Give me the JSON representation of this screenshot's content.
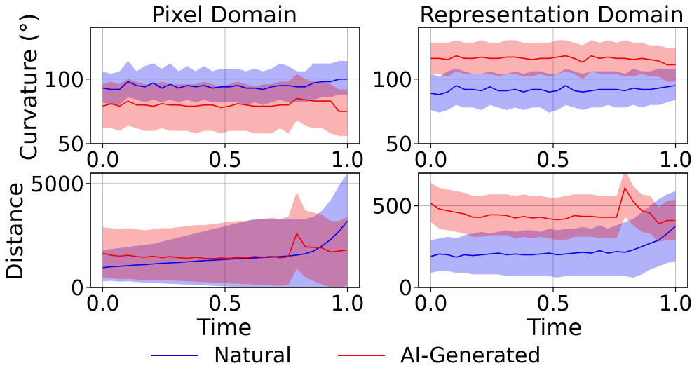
{
  "chart_data": [
    {
      "type": "line",
      "title": "Pixel Domain",
      "xlabel": "",
      "ylabel": "Curvature (°)",
      "xlim": [
        -0.05,
        1.05
      ],
      "ylim": [
        50,
        140
      ],
      "xticks": [
        0.0,
        0.5,
        1.0
      ],
      "xtick_labels": [
        "0.0",
        "0.5",
        "1.0"
      ],
      "yticks": [
        50,
        100
      ],
      "ytick_labels": [
        "50",
        "100"
      ],
      "grid": true,
      "x": [
        0.0,
        0.0345,
        0.069,
        0.1034,
        0.1379,
        0.1724,
        0.2069,
        0.2414,
        0.2759,
        0.3103,
        0.3448,
        0.3793,
        0.4138,
        0.4483,
        0.4828,
        0.5172,
        0.5517,
        0.5862,
        0.6207,
        0.6552,
        0.6897,
        0.7241,
        0.7586,
        0.7931,
        0.8276,
        0.8621,
        0.8966,
        0.931,
        0.9655,
        1.0
      ],
      "series": [
        {
          "name": "Natural",
          "color": "#0000ee",
          "values": [
            93,
            92,
            92,
            98,
            95,
            94,
            97,
            93,
            96,
            93,
            95,
            94,
            95,
            93,
            94,
            94,
            95,
            93,
            93,
            92,
            94,
            95,
            95,
            94,
            94,
            97,
            98,
            98,
            100,
            100
          ],
          "upper": [
            106,
            104,
            106,
            114,
            106,
            110,
            112,
            108,
            112,
            106,
            110,
            106,
            110,
            106,
            108,
            108,
            108,
            106,
            108,
            106,
            108,
            112,
            110,
            106,
            106,
            112,
            112,
            112,
            114,
            114
          ],
          "lower": [
            82,
            80,
            80,
            86,
            84,
            82,
            84,
            82,
            84,
            82,
            84,
            82,
            84,
            82,
            82,
            82,
            82,
            80,
            82,
            80,
            82,
            84,
            82,
            82,
            82,
            84,
            86,
            86,
            88,
            88
          ]
        },
        {
          "name": "AI-Generated",
          "color": "#ee0000",
          "values": [
            79,
            81,
            79,
            83,
            80,
            80,
            79,
            81,
            80,
            80,
            79,
            79,
            80,
            80,
            78,
            79,
            81,
            80,
            79,
            79,
            79,
            80,
            80,
            85,
            84,
            83,
            83,
            83,
            75,
            75
          ],
          "upper": [
            96,
            98,
            96,
            100,
            98,
            96,
            96,
            98,
            96,
            96,
            96,
            96,
            98,
            96,
            94,
            96,
            98,
            96,
            94,
            96,
            96,
            98,
            98,
            104,
            100,
            98,
            98,
            96,
            92,
            92
          ],
          "lower": [
            62,
            62,
            60,
            64,
            62,
            60,
            60,
            62,
            60,
            60,
            60,
            58,
            60,
            60,
            58,
            60,
            60,
            60,
            58,
            58,
            58,
            62,
            58,
            68,
            64,
            62,
            62,
            58,
            56,
            56
          ]
        }
      ]
    },
    {
      "type": "line",
      "title": "Representation Domain",
      "xlabel": "",
      "ylabel": "",
      "xlim": [
        -0.05,
        1.05
      ],
      "ylim": [
        50,
        140
      ],
      "xticks": [
        0.0,
        0.5,
        1.0
      ],
      "xtick_labels": [
        "0.0",
        "0.5",
        "1.0"
      ],
      "yticks": [
        50,
        100
      ],
      "ytick_labels": [
        "50",
        "100"
      ],
      "grid": true,
      "x": [
        0.0,
        0.0345,
        0.069,
        0.1034,
        0.1379,
        0.1724,
        0.2069,
        0.2414,
        0.2759,
        0.3103,
        0.3448,
        0.3793,
        0.4138,
        0.4483,
        0.4828,
        0.5172,
        0.5517,
        0.5862,
        0.6207,
        0.6552,
        0.6897,
        0.7241,
        0.7586,
        0.7931,
        0.8276,
        0.8621,
        0.8966,
        0.931,
        0.9655,
        1.0
      ],
      "series": [
        {
          "name": "Natural",
          "color": "#0000ee",
          "values": [
            89,
            88,
            90,
            95,
            92,
            92,
            91,
            94,
            91,
            91,
            92,
            90,
            92,
            92,
            90,
            91,
            95,
            91,
            90,
            91,
            92,
            92,
            92,
            91,
            93,
            92,
            92,
            93,
            94,
            95
          ],
          "upper": [
            104,
            102,
            106,
            108,
            106,
            104,
            104,
            106,
            104,
            104,
            106,
            104,
            106,
            106,
            104,
            104,
            108,
            106,
            104,
            106,
            106,
            106,
            106,
            104,
            108,
            106,
            106,
            108,
            108,
            108
          ],
          "lower": [
            76,
            74,
            76,
            80,
            78,
            78,
            76,
            80,
            78,
            76,
            78,
            76,
            78,
            78,
            74,
            76,
            80,
            78,
            76,
            78,
            78,
            80,
            78,
            78,
            80,
            78,
            80,
            80,
            82,
            84
          ]
        },
        {
          "name": "AI-Generated",
          "color": "#ee0000",
          "values": [
            116,
            116,
            115,
            118,
            116,
            116,
            117,
            116,
            116,
            117,
            117,
            116,
            115,
            116,
            116,
            117,
            118,
            116,
            113,
            118,
            116,
            117,
            116,
            116,
            115,
            116,
            115,
            114,
            111,
            111
          ],
          "upper": [
            128,
            128,
            128,
            130,
            128,
            128,
            130,
            128,
            128,
            130,
            130,
            128,
            128,
            128,
            128,
            130,
            130,
            128,
            126,
            130,
            128,
            130,
            128,
            130,
            128,
            128,
            126,
            126,
            124,
            124
          ],
          "lower": [
            104,
            104,
            102,
            106,
            104,
            104,
            104,
            104,
            102,
            104,
            104,
            102,
            102,
            104,
            102,
            104,
            106,
            104,
            100,
            106,
            104,
            104,
            104,
            102,
            102,
            104,
            102,
            102,
            98,
            98
          ]
        }
      ]
    },
    {
      "type": "line",
      "title": "",
      "xlabel": "Time",
      "ylabel": "Distance",
      "xlim": [
        -0.05,
        1.05
      ],
      "ylim": [
        0,
        5500
      ],
      "xticks": [
        0.0,
        0.5,
        1.0
      ],
      "xtick_labels": [
        "0.0",
        "0.5",
        "1.0"
      ],
      "yticks": [
        0,
        5000
      ],
      "ytick_labels": [
        "0",
        "5000"
      ],
      "grid": true,
      "x": [
        0.0,
        0.0345,
        0.069,
        0.1034,
        0.1379,
        0.1724,
        0.2069,
        0.2414,
        0.2759,
        0.3103,
        0.3448,
        0.3793,
        0.4138,
        0.4483,
        0.4828,
        0.5172,
        0.5517,
        0.5862,
        0.6207,
        0.6552,
        0.6897,
        0.7241,
        0.7586,
        0.7931,
        0.8276,
        0.8621,
        0.8966,
        0.931,
        0.9655,
        1.0
      ],
      "series": [
        {
          "name": "Natural",
          "color": "#0000ee",
          "values": [
            950,
            1000,
            1020,
            1050,
            1080,
            1100,
            1130,
            1160,
            1180,
            1200,
            1230,
            1260,
            1290,
            1310,
            1330,
            1360,
            1380,
            1400,
            1420,
            1440,
            1460,
            1480,
            1510,
            1560,
            1620,
            1750,
            2000,
            2300,
            2700,
            3200
          ],
          "upper": [
            1800,
            1850,
            1900,
            1950,
            2000,
            2050,
            2100,
            2200,
            2300,
            2400,
            2500,
            2600,
            2700,
            2800,
            2900,
            3000,
            3100,
            3200,
            3300,
            3300,
            3300,
            3300,
            3300,
            3300,
            3300,
            3400,
            3700,
            4200,
            4900,
            5500
          ],
          "lower": [
            300,
            320,
            280,
            300,
            260,
            240,
            220,
            200,
            180,
            160,
            140,
            120,
            100,
            80,
            60,
            40,
            20,
            10,
            0,
            0,
            0,
            0,
            0,
            0,
            0,
            0,
            0,
            0,
            0,
            0
          ]
        },
        {
          "name": "AI-Generated",
          "color": "#ee0000",
          "values": [
            1650,
            1550,
            1500,
            1550,
            1480,
            1450,
            1500,
            1430,
            1480,
            1430,
            1400,
            1450,
            1400,
            1380,
            1420,
            1400,
            1450,
            1420,
            1480,
            1450,
            1500,
            1420,
            1480,
            2600,
            1950,
            1930,
            1900,
            1700,
            1750,
            1800
          ],
          "upper": [
            2900,
            2850,
            2800,
            2850,
            2800,
            2750,
            2800,
            2850,
            2850,
            2900,
            2950,
            3000,
            3000,
            3050,
            3100,
            3150,
            3200,
            3200,
            3250,
            3300,
            3350,
            3300,
            3400,
            4600,
            3700,
            3600,
            3500,
            3200,
            3200,
            3400
          ],
          "lower": [
            500,
            450,
            400,
            420,
            380,
            360,
            380,
            360,
            340,
            320,
            300,
            280,
            260,
            240,
            220,
            200,
            180,
            160,
            140,
            120,
            100,
            80,
            120,
            900,
            500,
            300,
            150,
            0,
            0,
            100
          ]
        }
      ]
    },
    {
      "type": "line",
      "title": "",
      "xlabel": "Time",
      "ylabel": "",
      "xlim": [
        -0.05,
        1.05
      ],
      "ylim": [
        0,
        700
      ],
      "xticks": [
        0.0,
        0.5,
        1.0
      ],
      "xtick_labels": [
        "0.0",
        "0.5",
        "1.0"
      ],
      "yticks": [
        0,
        500
      ],
      "ytick_labels": [
        "0",
        "500"
      ],
      "grid": true,
      "x": [
        0.0,
        0.0345,
        0.069,
        0.1034,
        0.1379,
        0.1724,
        0.2069,
        0.2414,
        0.2759,
        0.3103,
        0.3448,
        0.3793,
        0.4138,
        0.4483,
        0.4828,
        0.5172,
        0.5517,
        0.5862,
        0.6207,
        0.6552,
        0.6897,
        0.7241,
        0.7586,
        0.7931,
        0.8276,
        0.8621,
        0.8966,
        0.931,
        0.9655,
        1.0
      ],
      "series": [
        {
          "name": "Natural",
          "color": "#0000ee",
          "values": [
            190,
            205,
            200,
            185,
            200,
            195,
            200,
            205,
            210,
            200,
            205,
            200,
            200,
            205,
            210,
            200,
            205,
            210,
            215,
            210,
            225,
            210,
            220,
            215,
            230,
            250,
            270,
            290,
            330,
            375
          ],
          "upper": [
            290,
            300,
            310,
            300,
            320,
            330,
            340,
            330,
            340,
            350,
            340,
            350,
            350,
            340,
            360,
            350,
            360,
            360,
            370,
            360,
            380,
            360,
            380,
            400,
            420,
            460,
            500,
            540,
            570,
            590
          ],
          "lower": [
            90,
            100,
            100,
            90,
            90,
            80,
            80,
            80,
            80,
            70,
            70,
            70,
            70,
            70,
            70,
            60,
            70,
            70,
            70,
            70,
            70,
            70,
            70,
            70,
            60,
            80,
            110,
            130,
            150,
            160
          ]
        },
        {
          "name": "AI-Generated",
          "color": "#ee0000",
          "values": [
            515,
            480,
            470,
            460,
            450,
            430,
            430,
            445,
            445,
            440,
            425,
            435,
            425,
            430,
            420,
            415,
            420,
            440,
            435,
            435,
            430,
            430,
            430,
            610,
            525,
            470,
            455,
            390,
            410,
            410
          ],
          "upper": [
            640,
            610,
            600,
            590,
            580,
            560,
            560,
            570,
            570,
            570,
            560,
            570,
            560,
            560,
            550,
            550,
            560,
            570,
            570,
            570,
            560,
            560,
            560,
            720,
            620,
            570,
            560,
            490,
            530,
            540
          ],
          "lower": [
            400,
            360,
            350,
            340,
            330,
            310,
            310,
            320,
            320,
            320,
            300,
            310,
            300,
            310,
            300,
            290,
            290,
            310,
            310,
            310,
            300,
            300,
            300,
            430,
            380,
            340,
            330,
            280,
            290,
            290
          ]
        }
      ]
    }
  ],
  "legend": {
    "position": "bottom-center",
    "items": [
      {
        "label": "Natural",
        "color": "#0000ee"
      },
      {
        "label": "AI-Generated",
        "color": "#ee0000"
      }
    ]
  }
}
